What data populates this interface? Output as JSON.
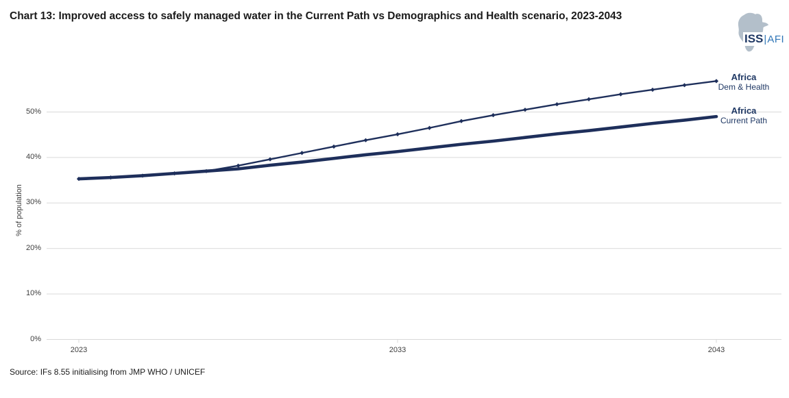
{
  "page": {
    "title": "Chart 13: Improved access to safely managed water in the Current Path vs Demographics and Health scenario, 2023-2043"
  },
  "logo": {
    "iss": "ISS",
    "separator": "|",
    "afi": "AFI",
    "africa_map_icon": "africa-map-icon",
    "colors": {
      "iss_navy": "#1f3864",
      "afi_blue": "#2e75b6",
      "map_grey": "#b3bfca"
    }
  },
  "source": "Source: IFs 8.55 initialising from JMP WHO / UNICEF",
  "chart_data": {
    "type": "line",
    "title": "Chart 13: Improved access to safely managed water in the Current Path vs Demographics and Health scenario, 2023-2043",
    "xlabel": "",
    "ylabel": "% of population",
    "x": [
      2023,
      2024,
      2025,
      2026,
      2027,
      2028,
      2029,
      2030,
      2031,
      2032,
      2033,
      2034,
      2035,
      2036,
      2037,
      2038,
      2039,
      2040,
      2041,
      2042,
      2043
    ],
    "xtick_values": [
      2023,
      2033,
      2043
    ],
    "xtick_labels": [
      "2023",
      "2033",
      "2043"
    ],
    "ytick_values": [
      0,
      10,
      20,
      30,
      40,
      50
    ],
    "ytick_labels": [
      "0%",
      "10%",
      "20%",
      "30%",
      "40%",
      "50%"
    ],
    "ylim": [
      0,
      60
    ],
    "grid": "horizontal",
    "legend_position": "right-end-of-line-labels",
    "colors": {
      "line": "#1e2f5b",
      "label_text": "#1f3864",
      "gridline": "#d9d9d9",
      "tick_text": "#3d3d3d"
    },
    "series": [
      {
        "name": "Africa",
        "scenario": "Dem & Health",
        "style": "thin-diamond-markers",
        "values": [
          35.3,
          35.6,
          36.0,
          36.5,
          37.0,
          38.2,
          39.6,
          41.0,
          42.4,
          43.8,
          45.1,
          46.5,
          48.0,
          49.3,
          50.5,
          51.7,
          52.8,
          53.9,
          54.9,
          55.9,
          56.8
        ]
      },
      {
        "name": "Africa",
        "scenario": "Current Path",
        "style": "thick-solid",
        "values": [
          35.3,
          35.6,
          36.0,
          36.5,
          37.0,
          37.5,
          38.3,
          39.0,
          39.8,
          40.6,
          41.3,
          42.1,
          42.9,
          43.6,
          44.4,
          45.2,
          45.9,
          46.7,
          47.5,
          48.2,
          49.0
        ]
      }
    ]
  }
}
